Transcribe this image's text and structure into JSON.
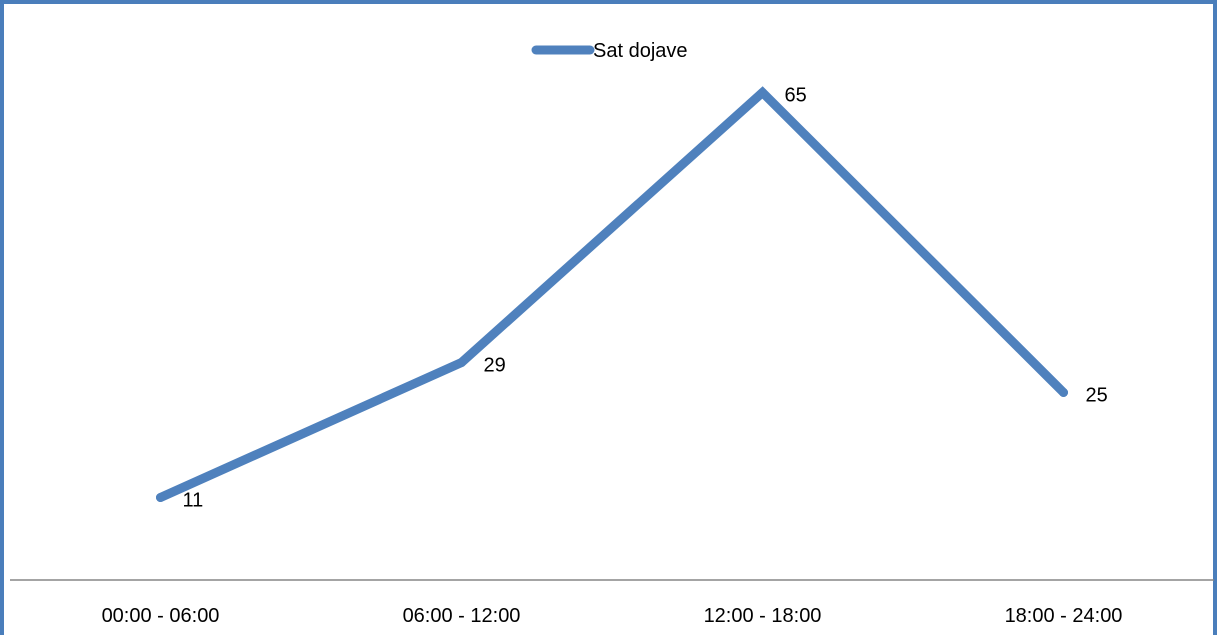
{
  "chart_data": {
    "type": "line",
    "categories": [
      "00:00 - 06:00",
      "06:00 - 12:00",
      "12:00 - 18:00",
      "18:00 - 24:00"
    ],
    "series": [
      {
        "name": "Sat dojave",
        "values": [
          11,
          29,
          65,
          25
        ]
      }
    ],
    "ylim": [
      0,
      72
    ],
    "grid": false,
    "legend_position": "top-center",
    "data_labels": true,
    "colors": {
      "line": "#4f81bd",
      "axis": "#868686",
      "frame": "#4a7ebb"
    }
  }
}
